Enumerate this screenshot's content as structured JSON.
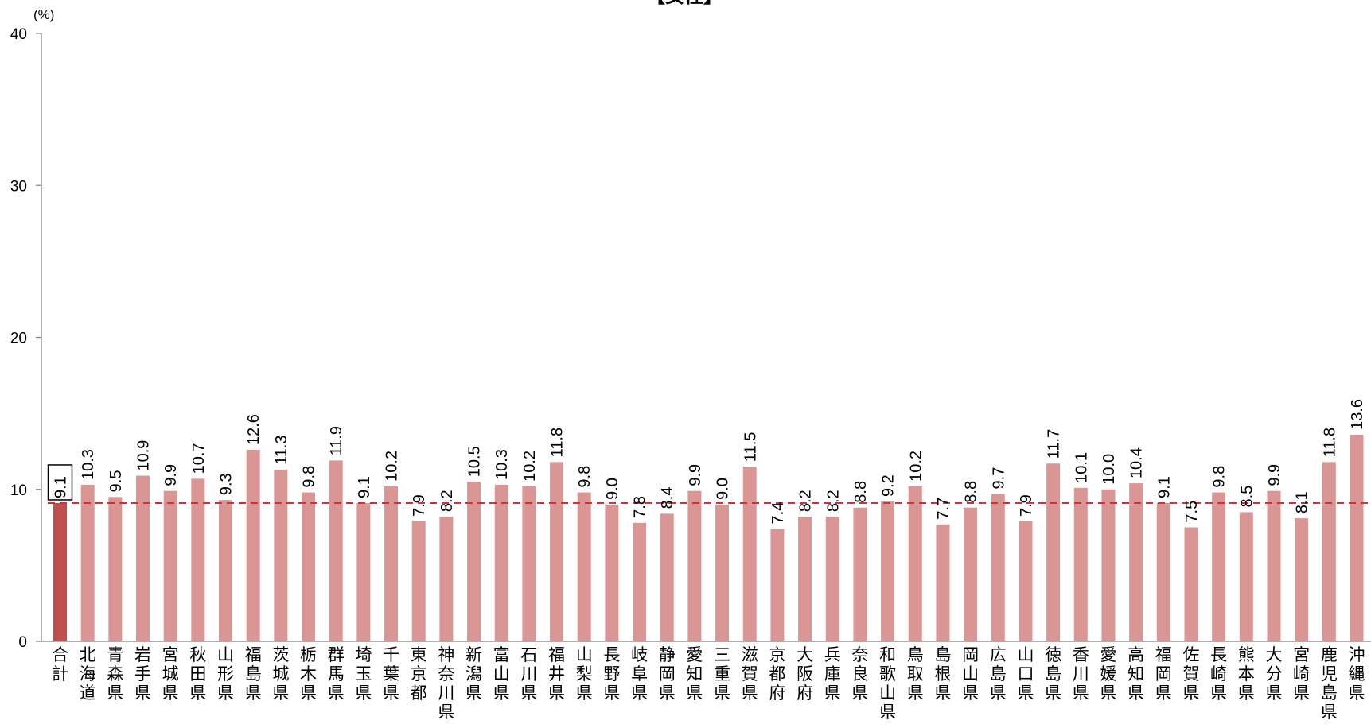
{
  "chart_data": {
    "type": "bar",
    "title": "【女性】",
    "ylabel": "(%)",
    "ylim": [
      0,
      40
    ],
    "yticks": [
      "0",
      "10",
      "20",
      "30",
      "40"
    ],
    "grid": false,
    "reference_line": {
      "value": 9.1,
      "style": "dashed",
      "color": "#cc3333"
    },
    "colors": {
      "total": "#c0504d",
      "bar": "#d99694",
      "axis": "#7f7f7f"
    },
    "categories": [
      "合計",
      "北海道",
      "青森県",
      "岩手県",
      "宮城県",
      "秋田県",
      "山形県",
      "福島県",
      "茨城県",
      "栃木県",
      "群馬県",
      "埼玉県",
      "千葉県",
      "東京都",
      "神奈川県",
      "新潟県",
      "富山県",
      "石川県",
      "福井県",
      "山梨県",
      "長野県",
      "岐阜県",
      "静岡県",
      "愛知県",
      "三重県",
      "滋賀県",
      "京都府",
      "大阪府",
      "兵庫県",
      "奈良県",
      "和歌山県",
      "鳥取県",
      "島根県",
      "岡山県",
      "広島県",
      "山口県",
      "徳島県",
      "香川県",
      "愛媛県",
      "高知県",
      "福岡県",
      "佐賀県",
      "長崎県",
      "熊本県",
      "大分県",
      "宮崎県",
      "鹿児島県",
      "沖縄県"
    ],
    "values": [
      9.1,
      10.3,
      9.5,
      10.9,
      9.9,
      10.7,
      9.3,
      12.6,
      11.3,
      9.8,
      11.9,
      9.1,
      10.2,
      7.9,
      8.2,
      10.5,
      10.3,
      10.2,
      11.8,
      9.8,
      9.0,
      7.8,
      8.4,
      9.9,
      9.0,
      11.5,
      7.4,
      8.2,
      8.2,
      8.8,
      9.2,
      10.2,
      7.7,
      8.8,
      9.7,
      7.9,
      11.7,
      10.1,
      10.0,
      10.4,
      9.1,
      7.5,
      9.8,
      8.5,
      9.9,
      8.1,
      11.8,
      13.6
    ],
    "value_labels": [
      "9.1",
      "10.3",
      "9.5",
      "10.9",
      "9.9",
      "10.7",
      "9.3",
      "12.6",
      "11.3",
      "9.8",
      "11.9",
      "9.1",
      "10.2",
      "7.9",
      "8.2",
      "10.5",
      "10.3",
      "10.2",
      "11.8",
      "9.8",
      "9.0",
      "7.8",
      "8.4",
      "9.9",
      "9.0",
      "11.5",
      "7.4",
      "8.2",
      "8.2",
      "8.8",
      "9.2",
      "10.2",
      "7.7",
      "8.8",
      "9.7",
      "7.9",
      "11.7",
      "10.1",
      "10.0",
      "10.4",
      "9.1",
      "7.5",
      "9.8",
      "8.5",
      "9.9",
      "8.1",
      "11.8",
      "13.6"
    ]
  }
}
